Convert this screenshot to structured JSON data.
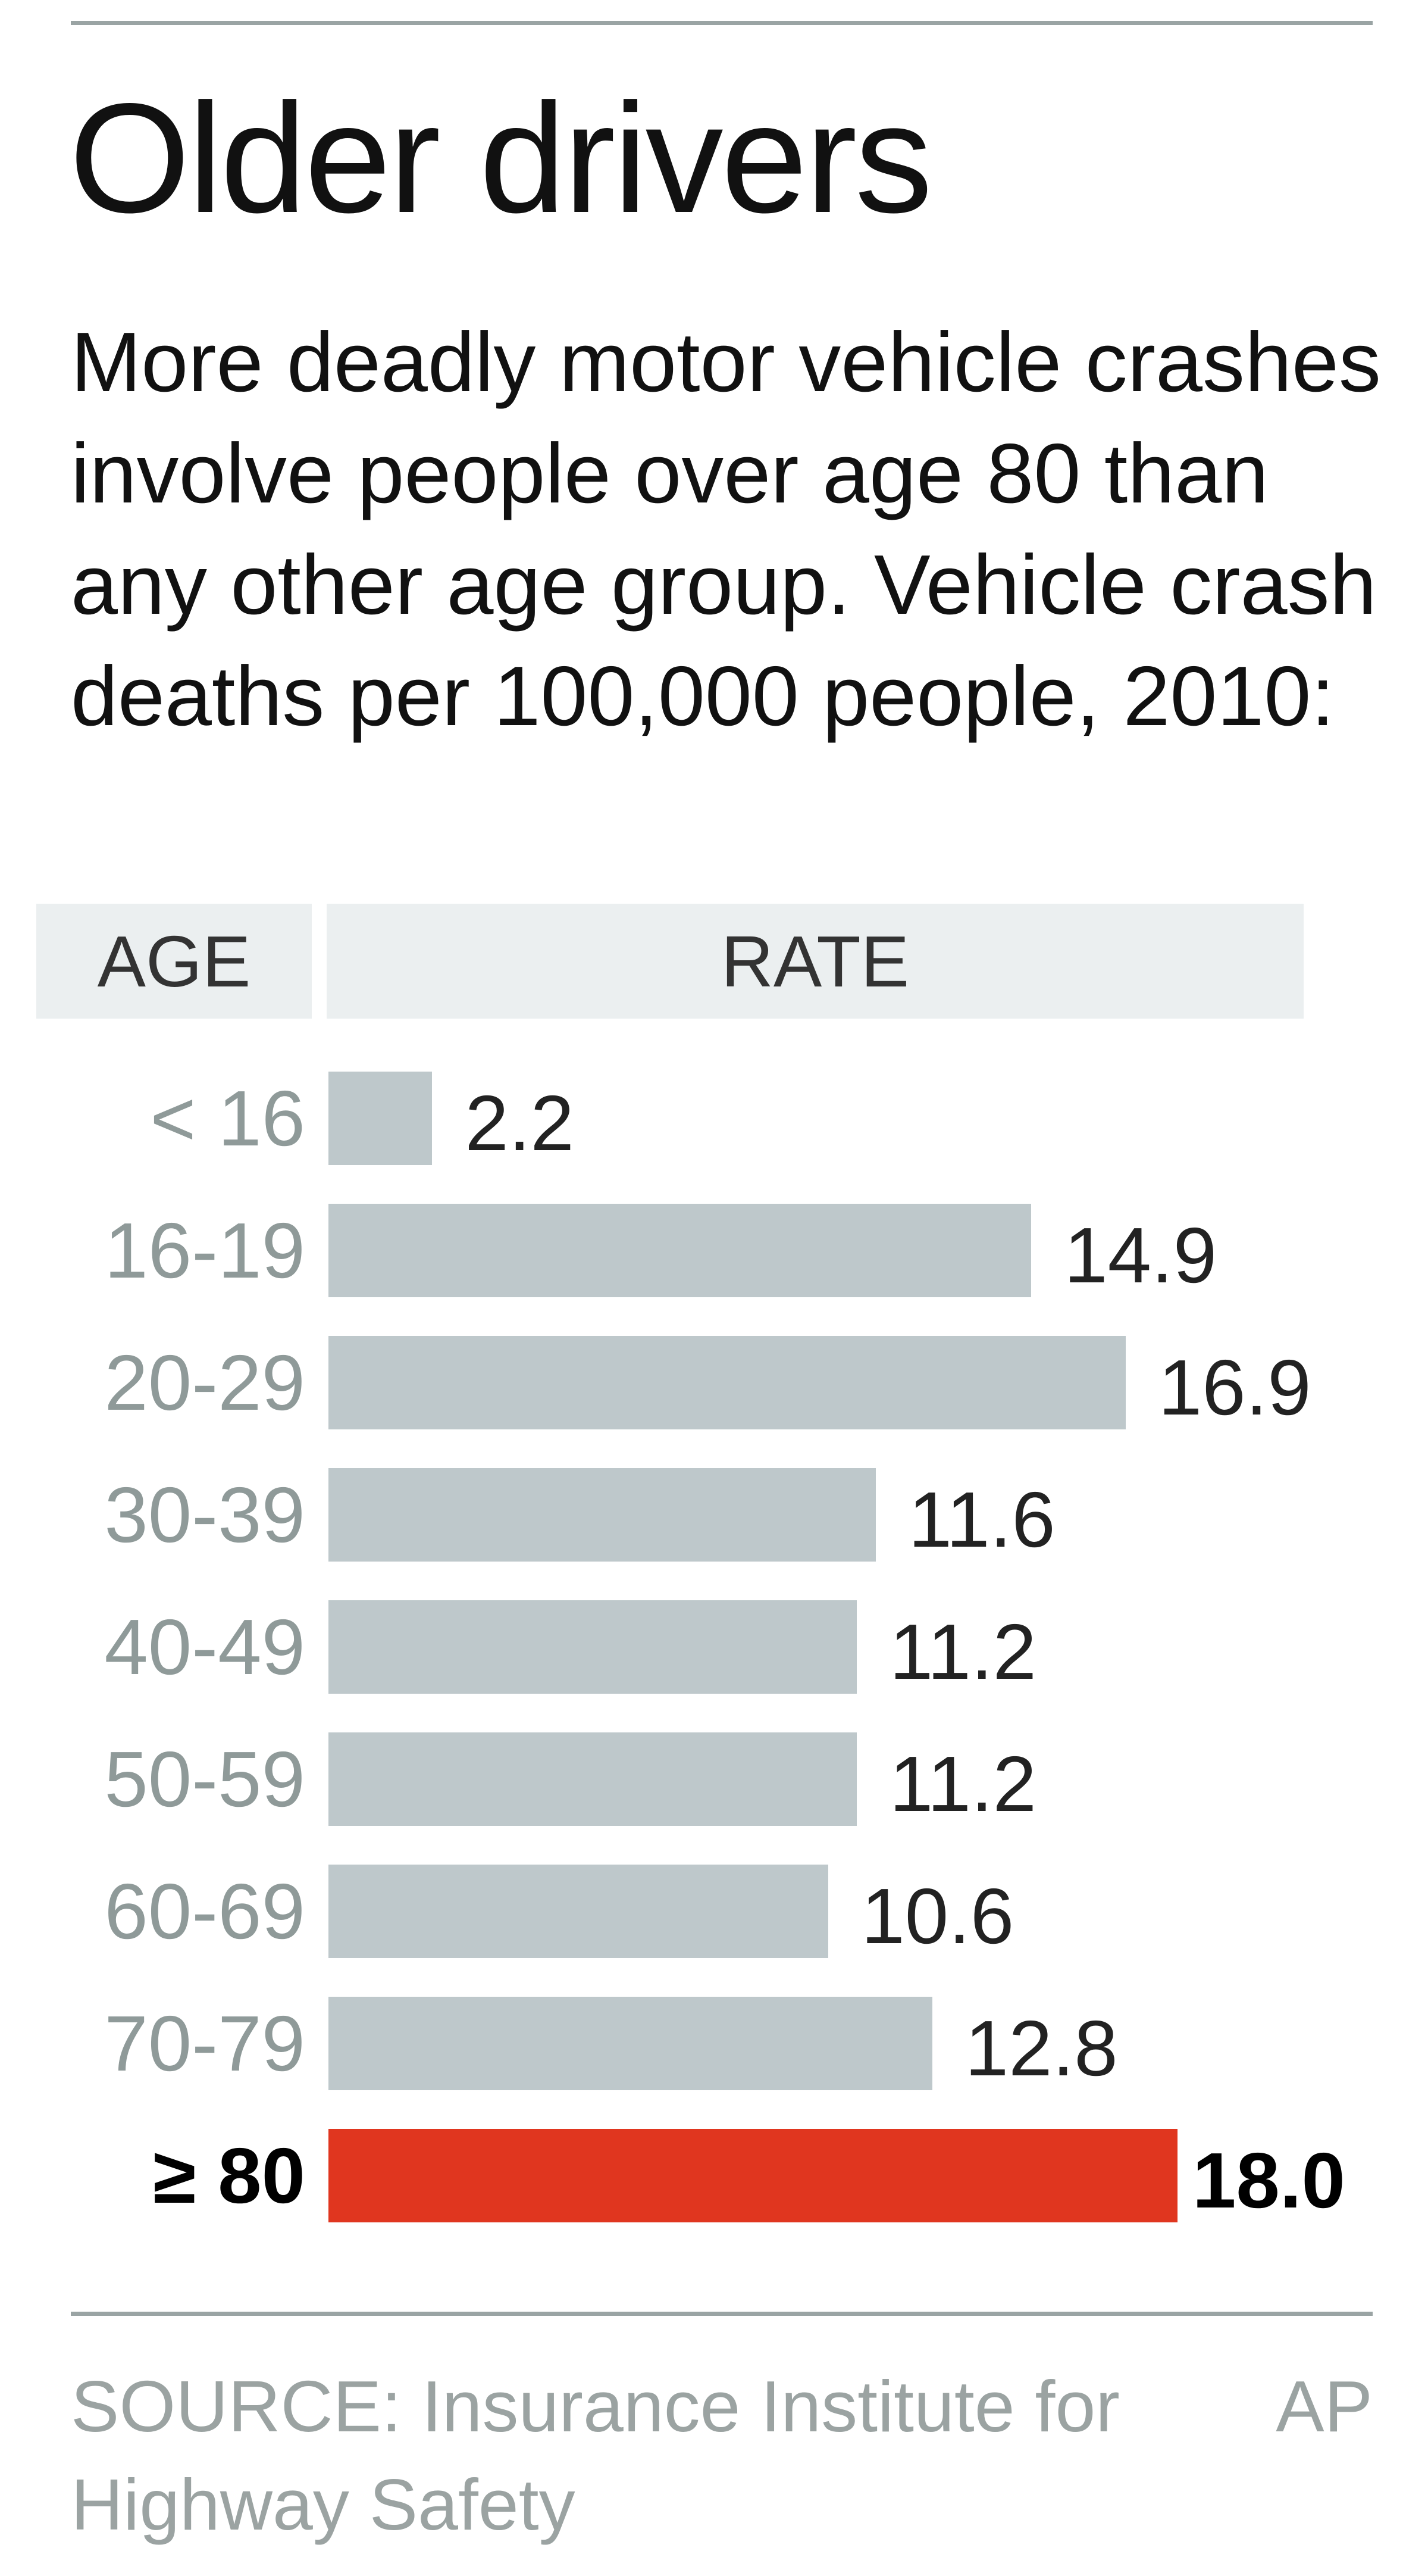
{
  "chart_data": {
    "type": "bar",
    "orientation": "horizontal",
    "title": "Older drivers",
    "subtitle": "More deadly motor vehicle crashes involve people over age 80 than any other age group. Vehicle crash deaths per 100,000 people, 2010:",
    "column_headers": {
      "age": "AGE",
      "rate": "RATE"
    },
    "categories": [
      "< 16",
      "16-19",
      "20-29",
      "30-39",
      "40-49",
      "50-59",
      "60-69",
      "70-79",
      "≥ 80"
    ],
    "values": [
      2.2,
      14.9,
      16.9,
      11.6,
      11.2,
      11.2,
      10.6,
      12.8,
      18.0
    ],
    "value_labels": [
      "2.2",
      "14.9",
      "16.9",
      "11.6",
      "11.2",
      "11.2",
      "10.6",
      "12.8",
      "18.0"
    ],
    "highlight_index": 8,
    "xlim": [
      0,
      18
    ],
    "colors": {
      "bar": "#bec8cb",
      "highlight": "#e0361f",
      "header_bg": "#ebeff0"
    },
    "source": "SOURCE: Insurance Institute for Highway Safety",
    "credit": "AP"
  }
}
